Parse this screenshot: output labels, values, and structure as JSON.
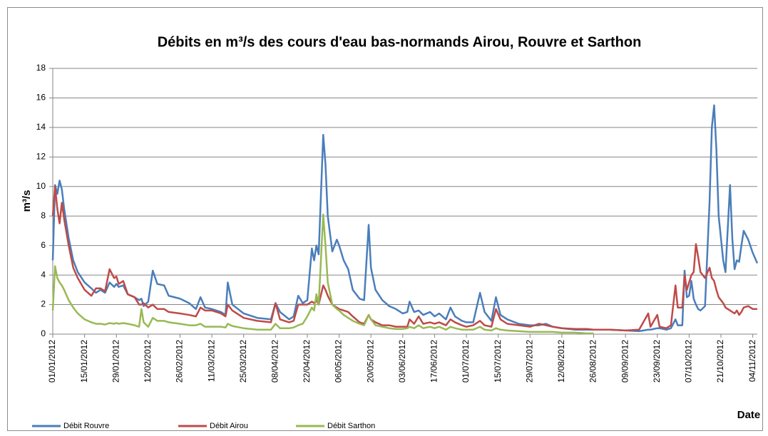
{
  "chart_data": {
    "type": "line",
    "title": "Débits en m³/s des cours d'eau bas-normands Airou, Rouvre et Sarthon",
    "y_label": "m³/s",
    "x_label": "Date",
    "x": [
      "01/01/2012",
      "02/01/2012",
      "03/01/2012",
      "04/01/2012",
      "05/01/2012",
      "06/01/2012",
      "08/01/2012",
      "10/01/2012",
      "12/01/2012",
      "15/01/2012",
      "18/01/2012",
      "20/01/2012",
      "22/01/2012",
      "24/01/2012",
      "26/01/2012",
      "28/01/2012",
      "29/01/2012",
      "30/01/2012",
      "01/02/2012",
      "03/02/2012",
      "06/02/2012",
      "08/02/2012",
      "09/02/2012",
      "10/02/2012",
      "12/02/2012",
      "14/02/2012",
      "16/02/2012",
      "19/02/2012",
      "21/02/2012",
      "26/02/2012",
      "01/03/2012",
      "04/03/2012",
      "06/03/2012",
      "08/03/2012",
      "11/03/2012",
      "15/03/2012",
      "17/03/2012",
      "18/03/2012",
      "20/03/2012",
      "25/03/2012",
      "31/03/2012",
      "06/04/2012",
      "08/04/2012",
      "10/04/2012",
      "14/04/2012",
      "16/04/2012",
      "18/04/2012",
      "20/04/2012",
      "22/04/2012",
      "24/04/2012",
      "25/04/2012",
      "26/04/2012",
      "27/04/2012",
      "29/04/2012",
      "30/04/2012",
      "01/05/2012",
      "03/05/2012",
      "05/05/2012",
      "06/05/2012",
      "08/05/2012",
      "10/05/2012",
      "12/05/2012",
      "15/05/2012",
      "17/05/2012",
      "19/05/2012",
      "20/05/2012",
      "22/05/2012",
      "25/05/2012",
      "28/05/2012",
      "31/05/2012",
      "03/06/2012",
      "05/06/2012",
      "06/06/2012",
      "08/06/2012",
      "10/06/2012",
      "12/06/2012",
      "15/06/2012",
      "17/06/2012",
      "19/06/2012",
      "22/06/2012",
      "24/06/2012",
      "26/06/2012",
      "29/06/2012",
      "01/07/2012",
      "04/07/2012",
      "07/07/2012",
      "09/07/2012",
      "12/07/2012",
      "14/07/2012",
      "16/07/2012",
      "19/07/2012",
      "24/07/2012",
      "29/07/2012",
      "02/08/2012",
      "05/08/2012",
      "08/08/2012",
      "12/08/2012",
      "18/08/2012",
      "23/08/2012",
      "26/08/2012",
      "28/08/2012",
      "02/09/2012",
      "09/09/2012",
      "15/09/2012",
      "19/09/2012",
      "20/09/2012",
      "23/09/2012",
      "24/09/2012",
      "27/09/2012",
      "29/09/2012",
      "01/10/2012",
      "02/10/2012",
      "04/10/2012",
      "05/10/2012",
      "06/10/2012",
      "07/10/2012",
      "08/10/2012",
      "09/10/2012",
      "10/10/2012",
      "11/10/2012",
      "12/10/2012",
      "14/10/2012",
      "16/10/2012",
      "17/10/2012",
      "18/10/2012",
      "19/10/2012",
      "20/10/2012",
      "22/10/2012",
      "23/10/2012",
      "25/10/2012",
      "26/10/2012",
      "27/10/2012",
      "28/10/2012",
      "29/10/2012",
      "30/10/2012",
      "31/10/2012",
      "02/11/2012",
      "04/11/2012",
      "06/11/2012"
    ],
    "series": [
      {
        "name": "Débit Rouvre",
        "color": "#4a7ebb",
        "values": [
          5,
          10.1,
          9.5,
          10.4,
          9.8,
          8.5,
          6.5,
          5,
          4.2,
          3.5,
          3.1,
          2.8,
          3,
          2.8,
          3.5,
          3.2,
          3.4,
          3.2,
          3.3,
          2.7,
          2.5,
          2.3,
          2.4,
          1.9,
          2.2,
          4.3,
          3.4,
          3.3,
          2.6,
          2.4,
          2.1,
          1.7,
          2.5,
          1.8,
          1.7,
          1.5,
          1.3,
          3.5,
          2,
          1.4,
          1.1,
          1,
          2.1,
          1.5,
          1,
          1.2,
          2.6,
          2.1,
          2.3,
          5.8,
          5,
          6,
          5.4,
          13.5,
          11.5,
          8,
          5.6,
          6.4,
          6,
          5,
          4.4,
          3,
          2.4,
          2.3,
          7.4,
          4.5,
          3,
          2.3,
          1.9,
          1.7,
          1.4,
          1.5,
          2.2,
          1.5,
          1.6,
          1.3,
          1.5,
          1.2,
          1.4,
          1,
          1.8,
          1.2,
          0.9,
          0.8,
          0.8,
          2.8,
          1.5,
          0.9,
          2.5,
          1.3,
          1,
          0.7,
          0.6,
          0.6,
          0.7,
          0.5,
          0.4,
          0.3,
          0.3,
          0.3,
          0.3,
          0.3,
          0.25,
          0.2,
          0.3,
          0.3,
          0.4,
          0.4,
          0.3,
          0.4,
          1,
          0.6,
          0.6,
          4.3,
          2.5,
          2.6,
          3.6,
          2.4,
          2,
          1.7,
          1.6,
          1.9,
          9,
          14,
          15.5,
          12.5,
          8,
          5,
          4.2,
          10.1,
          6.5,
          4.4,
          5,
          4.9,
          6,
          7,
          6.4,
          5.5,
          4.8
        ]
      },
      {
        "name": "Débit Airou",
        "color": "#be4b48",
        "values": [
          8,
          10,
          8.5,
          7.5,
          8.9,
          7.8,
          6,
          4.5,
          3.8,
          3,
          2.6,
          3.1,
          3.1,
          2.9,
          4.4,
          3.8,
          3.9,
          3.4,
          3.6,
          2.7,
          2.5,
          2,
          2,
          2.1,
          1.8,
          2,
          1.7,
          1.7,
          1.5,
          1.4,
          1.3,
          1.2,
          1.8,
          1.6,
          1.6,
          1.4,
          1.2,
          2,
          1.6,
          1.1,
          0.9,
          0.8,
          2.1,
          1,
          0.8,
          0.9,
          2,
          2,
          2,
          2.2,
          2.1,
          2.3,
          2,
          3.3,
          3,
          2.6,
          2,
          1.8,
          1.7,
          1.6,
          1.5,
          1.2,
          0.8,
          0.7,
          1.3,
          1,
          0.8,
          0.6,
          0.6,
          0.5,
          0.5,
          0.5,
          1,
          0.7,
          1.2,
          0.7,
          0.8,
          0.7,
          0.8,
          0.6,
          1,
          0.8,
          0.6,
          0.5,
          0.6,
          0.9,
          0.6,
          0.5,
          1.7,
          1,
          0.7,
          0.6,
          0.5,
          0.7,
          0.6,
          0.5,
          0.4,
          0.35,
          0.35,
          0.3,
          0.3,
          0.3,
          0.25,
          0.3,
          1.4,
          0.5,
          1.3,
          0.5,
          0.4,
          0.6,
          3.3,
          1.8,
          1.8,
          4,
          3,
          3.5,
          4,
          4.2,
          6.1,
          5.2,
          4.2,
          3.8,
          4.5,
          3.8,
          3.6,
          3,
          2.5,
          2.1,
          1.8,
          1.6,
          1.5,
          1.4,
          1.6,
          1.3,
          1.5,
          1.8,
          1.9,
          1.7,
          1.7
        ]
      },
      {
        "name": "Débit Sarthon",
        "color": "#98b954",
        "values": [
          1.6,
          4.6,
          3.8,
          3.5,
          3.3,
          3,
          2.3,
          1.8,
          1.4,
          1,
          0.8,
          0.7,
          0.7,
          0.65,
          0.75,
          0.7,
          0.75,
          0.7,
          0.75,
          0.7,
          0.6,
          0.5,
          1.7,
          0.8,
          0.5,
          1.1,
          0.9,
          0.9,
          0.8,
          0.7,
          0.6,
          0.6,
          0.7,
          0.5,
          0.5,
          0.5,
          0.45,
          0.7,
          0.55,
          0.4,
          0.3,
          0.3,
          0.7,
          0.4,
          0.4,
          0.45,
          0.6,
          0.7,
          1.2,
          1.8,
          1.6,
          2.7,
          2,
          8.1,
          6,
          3.5,
          2,
          1.7,
          1.6,
          1.3,
          1.1,
          0.9,
          0.7,
          0.6,
          1.3,
          1,
          0.6,
          0.5,
          0.4,
          0.35,
          0.35,
          0.4,
          0.5,
          0.4,
          0.6,
          0.4,
          0.5,
          0.4,
          0.5,
          0.3,
          0.5,
          0.4,
          0.3,
          0.3,
          0.3,
          0.5,
          0.3,
          0.25,
          0.4,
          0.3,
          0.25,
          0.2,
          0.15,
          0.15,
          0.15,
          0.15,
          0.1,
          0.1,
          0.05,
          0.05,
          null,
          null,
          null,
          null,
          null,
          null,
          null,
          null,
          null,
          null,
          null,
          null,
          null,
          null,
          null,
          null,
          null,
          null,
          null,
          null,
          null,
          null,
          null,
          null,
          null,
          null,
          null,
          null,
          null,
          null,
          null,
          null,
          null,
          null,
          null,
          null,
          null,
          null,
          null
        ]
      }
    ],
    "xlim": [
      "01/01/2012",
      "06/11/2012"
    ],
    "xticks": [
      "01/01/2012",
      "15/01/2012",
      "29/01/2012",
      "12/02/2012",
      "26/02/2012",
      "11/03/2012",
      "25/03/2012",
      "08/04/2012",
      "22/04/2012",
      "06/05/2012",
      "20/05/2012",
      "03/06/2012",
      "17/06/2012",
      "01/07/2012",
      "15/07/2012",
      "29/07/2012",
      "12/08/2012",
      "26/08/2012",
      "09/09/2012",
      "23/09/2012",
      "07/10/2012",
      "21/10/2012",
      "04/11/2012"
    ],
    "ylim": [
      0,
      18
    ],
    "yticks": [
      0,
      2,
      4,
      6,
      8,
      10,
      12,
      14,
      16,
      18
    ],
    "grid": true,
    "legend": "bottom"
  }
}
